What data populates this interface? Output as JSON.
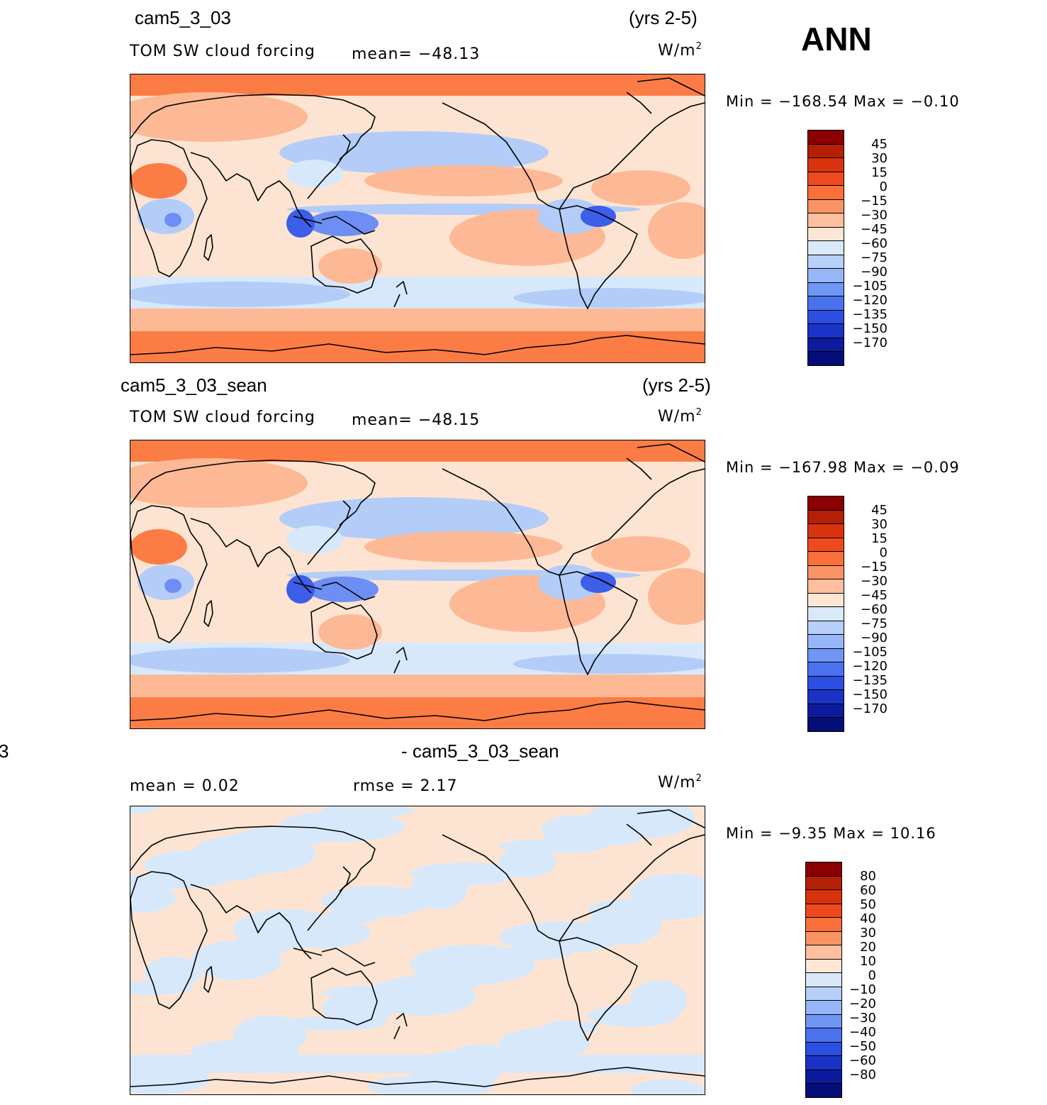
{
  "season": "ANN",
  "panels": [
    {
      "case_name": "cam5_3_03",
      "years": "(yrs 2-5)",
      "variable": "TOM SW cloud forcing",
      "stat_text": "mean=  −48.13",
      "units_base": "W/m",
      "units_exp": "2",
      "minmax": "Min  =  −168.54  Max  =    −0.10",
      "colorbar": {
        "labels": [
          "45",
          "30",
          "15",
          "0",
          "−15",
          "−30",
          "−45",
          "−60",
          "−75",
          "−90",
          "−105",
          "−120",
          "−135",
          "−150",
          "−170"
        ],
        "colors": [
          "#8b0000",
          "#b51f06",
          "#d9330d",
          "#ee4a1d",
          "#f9703a",
          "#fb9464",
          "#fdbf9d",
          "#fde7d4",
          "#d9e9fa",
          "#b7d0fa",
          "#97b6f8",
          "#6f95f5",
          "#4a72ef",
          "#2b4fe2",
          "#1a32c6",
          "#0c1b9e",
          "#050e78"
        ]
      }
    },
    {
      "case_name": "cam5_3_03_sean",
      "years": "(yrs 2-5)",
      "variable": "TOM SW cloud forcing",
      "stat_text": "mean=  −48.15",
      "units_base": "W/m",
      "units_exp": "2",
      "minmax": "Min  =  −167.98  Max  =    −0.09",
      "colorbar": {
        "labels": [
          "45",
          "30",
          "15",
          "0",
          "−15",
          "−30",
          "−45",
          "−60",
          "−75",
          "−90",
          "−105",
          "−120",
          "−135",
          "−150",
          "−170"
        ],
        "colors": [
          "#8b0000",
          "#b51f06",
          "#d9330d",
          "#ee4a1d",
          "#f9703a",
          "#fb9464",
          "#fdbf9d",
          "#fde7d4",
          "#d9e9fa",
          "#b7d0fa",
          "#97b6f8",
          "#6f95f5",
          "#4a72ef",
          "#2b4fe2",
          "#1a32c6",
          "#0c1b9e",
          "#050e78"
        ]
      }
    },
    {
      "left_fragment": "3",
      "case_name": "- cam5_3_03_sean",
      "mean_text": "mean  =     0.02",
      "rmse_text": "rmse  =     2.17",
      "units_base": "W/m",
      "units_exp": "2",
      "minmax": "Min  =    −9.35  Max  =    10.16",
      "colorbar": {
        "labels": [
          "80",
          "60",
          "50",
          "40",
          "30",
          "20",
          "10",
          "0",
          "−10",
          "−20",
          "−30",
          "−40",
          "−50",
          "−60",
          "−80"
        ],
        "colors": [
          "#8b0000",
          "#b51f06",
          "#d9330d",
          "#ee4a1d",
          "#f9703a",
          "#fb9464",
          "#fdbf9d",
          "#fde7d4",
          "#d9e9fa",
          "#b7d0fa",
          "#97b6f8",
          "#6f95f5",
          "#4a72ef",
          "#2b4fe2",
          "#1a32c6",
          "#0c1b9e",
          "#050e78"
        ]
      }
    }
  ]
}
